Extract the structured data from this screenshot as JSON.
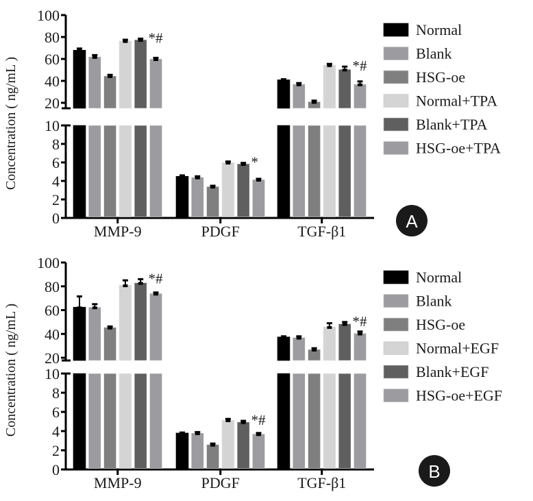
{
  "chart_data": [
    {
      "type": "bar",
      "panel_label": "A",
      "ylabel": "Concentration ( ng/mL )",
      "xlabel": "",
      "categories": [
        "MMP-9",
        "PDGF",
        "TGF-β1"
      ],
      "y_axis_broken": true,
      "lower_ylim": [
        0,
        10
      ],
      "lower_ticks": [
        "0",
        "2",
        "4",
        "6",
        "8",
        "10"
      ],
      "upper_ylim": [
        18,
        100
      ],
      "upper_ticks": [
        "20",
        "40",
        "60",
        "80",
        "100"
      ],
      "legend_position": "right",
      "series": [
        {
          "name": "Normal",
          "color": "#000000",
          "values": [
            68,
            4.5,
            41
          ],
          "errors": [
            1.5,
            0.1,
            0.5
          ]
        },
        {
          "name": "Blank",
          "color": "#9c9ca0",
          "values": [
            62,
            4.4,
            37
          ],
          "errors": [
            1.5,
            0.1,
            1
          ]
        },
        {
          "name": "HSG-oe",
          "color": "#7f7f7f",
          "values": [
            44.5,
            3.4,
            21
          ],
          "errors": [
            1,
            0.08,
            1
          ]
        },
        {
          "name": "Normal+TPA",
          "color": "#d4d4d4",
          "values": [
            76.5,
            6.0,
            54.5
          ],
          "errors": [
            1,
            0.1,
            1
          ]
        },
        {
          "name": "Blank+TPA",
          "color": "#5f5f5f",
          "values": [
            77.5,
            5.85,
            50.5
          ],
          "errors": [
            1,
            0.1,
            2.5
          ]
        },
        {
          "name": "HSG-oe+TPA",
          "color": "#9c9ca0",
          "values": [
            60,
            4.15,
            37
          ],
          "errors": [
            1,
            0.08,
            2.5
          ]
        }
      ],
      "annotations": [
        {
          "category": "MMP-9",
          "series": "HSG-oe+TPA",
          "text": "*#"
        },
        {
          "category": "PDGF",
          "series": "HSG-oe+TPA",
          "text": "*"
        },
        {
          "category": "TGF-β1",
          "series": "HSG-oe+TPA",
          "text": "*#"
        }
      ]
    },
    {
      "type": "bar",
      "panel_label": "B",
      "ylabel": "Concentration ( ng/mL )",
      "xlabel": "",
      "categories": [
        "MMP-9",
        "PDGF",
        "TGF-β1"
      ],
      "y_axis_broken": true,
      "lower_ylim": [
        0,
        10
      ],
      "lower_ticks": [
        "0",
        "2",
        "4",
        "6",
        "8",
        "10"
      ],
      "upper_ylim": [
        20,
        100
      ],
      "upper_ticks": [
        "20",
        "40",
        "60",
        "80",
        "100"
      ],
      "legend_position": "right",
      "series": [
        {
          "name": "Normal",
          "color": "#000000",
          "values": [
            62.5,
            3.8,
            37.5
          ],
          "errors": [
            9,
            0.05,
            0.5
          ]
        },
        {
          "name": "Blank",
          "color": "#9c9ca0",
          "values": [
            62.5,
            3.8,
            37
          ],
          "errors": [
            2.5,
            0.1,
            1
          ]
        },
        {
          "name": "HSG-oe",
          "color": "#7f7f7f",
          "values": [
            45.5,
            2.6,
            27
          ],
          "errors": [
            0.8,
            0.1,
            1
          ]
        },
        {
          "name": "Normal+EGF",
          "color": "#d4d4d4",
          "values": [
            81,
            5.15,
            46
          ],
          "errors": [
            4,
            0.12,
            3
          ]
        },
        {
          "name": "Blank+EGF",
          "color": "#5f5f5f",
          "values": [
            83,
            4.95,
            48.5
          ],
          "errors": [
            3,
            0.12,
            1.5
          ]
        },
        {
          "name": "HSG-oe+EGF",
          "color": "#9c9ca0",
          "values": [
            74,
            3.7,
            40.5
          ],
          "errors": [
            0.8,
            0.1,
            1.5
          ]
        }
      ],
      "annotations": [
        {
          "category": "MMP-9",
          "series": "HSG-oe+EGF",
          "text": "*#"
        },
        {
          "category": "PDGF",
          "series": "HSG-oe+EGF",
          "text": "*#"
        },
        {
          "category": "TGF-β1",
          "series": "HSG-oe+EGF",
          "text": "*#"
        }
      ]
    }
  ]
}
